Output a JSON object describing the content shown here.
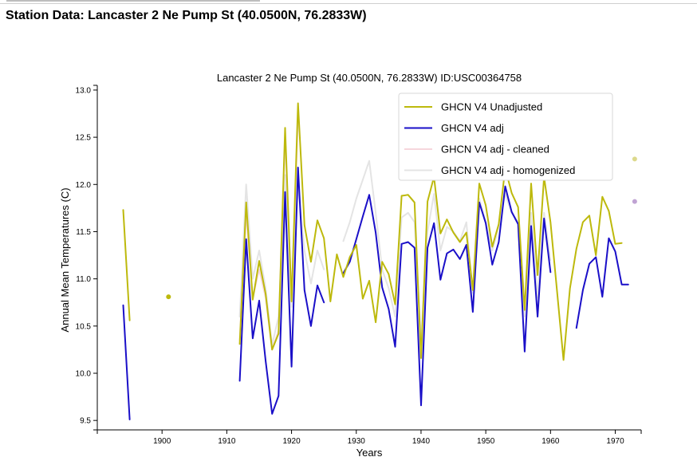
{
  "page": {
    "heading": "Station Data: Lancaster 2 Ne Pump St (40.0500N, 76.2833W)"
  },
  "chart_data": {
    "type": "line",
    "title": "Lancaster 2 Ne Pump St (40.0500N, 76.2833W) ID:USC00364758",
    "xlabel": "Years",
    "ylabel": "Annual Mean Temperatures (C)",
    "xlim": [
      1890,
      1974
    ],
    "ylim": [
      9.4,
      13.05
    ],
    "x_ticks": [
      1900,
      1910,
      1920,
      1930,
      1940,
      1950,
      1960,
      1970
    ],
    "y_ticks": [
      9.5,
      10.0,
      10.5,
      11.0,
      11.5,
      12.0,
      12.5,
      13.0
    ],
    "y_tick_labels": [
      "9.5",
      "10.0",
      "10.5",
      "11.0",
      "11.5",
      "12.0",
      "12.5",
      "13.0"
    ],
    "legend_position": "top-right",
    "series": [
      {
        "name": "GHCN V4 adj - homogenized",
        "color": "#e4e4e4",
        "points": [
          [
            1912,
            10.6
          ],
          [
            1913,
            12.0
          ],
          [
            1914,
            11.0
          ],
          [
            1915,
            11.3
          ],
          [
            1916,
            10.9
          ],
          [
            1917,
            10.3
          ],
          [
            1918,
            10.6
          ],
          [
            1919,
            12.1
          ],
          [
            1920,
            10.7
          ],
          [
            1921,
            12.0
          ],
          [
            1922,
            11.3
          ],
          [
            1923,
            10.95
          ],
          [
            1924,
            11.3
          ],
          [
            1925,
            11.1
          ],
          [
            null,
            null
          ],
          [
            1928,
            11.4
          ],
          [
            1929,
            11.6
          ],
          [
            1930,
            11.85
          ],
          [
            1931,
            12.05
          ],
          [
            1932,
            12.25
          ],
          [
            1933,
            11.7
          ],
          [
            1934,
            11.1
          ],
          [
            1935,
            10.9
          ],
          [
            1936,
            10.6
          ],
          [
            1937,
            11.65
          ],
          [
            1938,
            11.7
          ],
          [
            1939,
            11.6
          ],
          [
            1940,
            10.35
          ],
          [
            1941,
            11.5
          ],
          [
            1942,
            11.9
          ],
          [
            1943,
            11.3
          ],
          [
            1944,
            11.55
          ],
          [
            1945,
            11.5
          ],
          [
            1946,
            11.4
          ],
          [
            1947,
            11.6
          ],
          [
            1948,
            10.85
          ],
          [
            1949,
            11.85
          ],
          [
            1950,
            11.6
          ],
          [
            1951,
            11.3
          ],
          [
            1952,
            11.55
          ],
          [
            1953,
            11.9
          ],
          [
            1954,
            11.7
          ],
          [
            1955,
            11.6
          ],
          [
            1956,
            10.6
          ],
          [
            1957,
            11.7
          ],
          [
            1958,
            10.8
          ],
          [
            1959,
            11.7
          ],
          [
            1960,
            11.2
          ]
        ]
      },
      {
        "name": "GHCN V4 adj - cleaned",
        "color": "#f6d6dc",
        "points": [
          [
            1912,
            10.35
          ],
          [
            1913,
            11.7
          ],
          [
            1914,
            10.8
          ],
          [
            1915,
            11.1
          ],
          [
            1916,
            10.8
          ],
          [
            1917,
            10.25
          ],
          [
            1918,
            10.45
          ],
          [
            1919,
            12.5
          ],
          [
            1920,
            10.8
          ],
          [
            1921,
            12.7
          ]
        ]
      },
      {
        "name": "GHCN V4 adj",
        "color": "#1a0fc8",
        "points": [
          [
            1894,
            10.72
          ],
          [
            1895,
            9.51
          ],
          [
            null,
            null
          ],
          [
            1912,
            9.92
          ],
          [
            1913,
            11.42
          ],
          [
            1914,
            10.37
          ],
          [
            1915,
            10.77
          ],
          [
            1916,
            10.13
          ],
          [
            1917,
            9.57
          ],
          [
            1918,
            9.76
          ],
          [
            1919,
            11.92
          ],
          [
            1920,
            10.07
          ],
          [
            1921,
            12.18
          ],
          [
            1922,
            10.88
          ],
          [
            1923,
            10.5
          ],
          [
            1924,
            10.93
          ],
          [
            1925,
            10.75
          ],
          [
            null,
            null
          ],
          [
            1928,
            11.06
          ],
          [
            1929,
            11.18
          ],
          [
            1930,
            11.42
          ],
          [
            1931,
            11.66
          ],
          [
            1932,
            11.89
          ],
          [
            1933,
            11.49
          ],
          [
            1934,
            10.91
          ],
          [
            1935,
            10.68
          ],
          [
            1936,
            10.28
          ],
          [
            1937,
            11.37
          ],
          [
            1938,
            11.39
          ],
          [
            1939,
            11.33
          ],
          [
            1940,
            9.66
          ],
          [
            1941,
            11.33
          ],
          [
            1942,
            11.59
          ],
          [
            1943,
            10.99
          ],
          [
            1944,
            11.27
          ],
          [
            1945,
            11.31
          ],
          [
            1946,
            11.21
          ],
          [
            1947,
            11.36
          ],
          [
            1948,
            10.65
          ],
          [
            1949,
            11.81
          ],
          [
            1950,
            11.59
          ],
          [
            1951,
            11.15
          ],
          [
            1952,
            11.39
          ],
          [
            1953,
            11.98
          ],
          [
            1954,
            11.71
          ],
          [
            1955,
            11.58
          ],
          [
            1956,
            10.23
          ],
          [
            1957,
            11.56
          ],
          [
            1958,
            10.6
          ],
          [
            1959,
            11.64
          ],
          [
            1960,
            11.07
          ],
          [
            null,
            null
          ],
          [
            1964,
            10.48
          ],
          [
            1965,
            10.88
          ],
          [
            1966,
            11.16
          ],
          [
            1967,
            11.23
          ],
          [
            1968,
            10.81
          ],
          [
            1969,
            11.43
          ],
          [
            1970,
            11.29
          ],
          [
            1971,
            10.94
          ],
          [
            1972,
            10.94
          ]
        ]
      },
      {
        "name": "GHCN V4 Unadjusted",
        "color": "#bdb90c",
        "points": [
          [
            1894,
            11.73
          ],
          [
            1895,
            10.56
          ],
          [
            null,
            null
          ],
          [
            1912,
            10.31
          ],
          [
            1913,
            11.81
          ],
          [
            1914,
            10.78
          ],
          [
            1915,
            11.19
          ],
          [
            1916,
            10.84
          ],
          [
            1917,
            10.25
          ],
          [
            1918,
            10.42
          ],
          [
            1919,
            12.6
          ],
          [
            1920,
            10.76
          ],
          [
            1921,
            12.86
          ],
          [
            1922,
            11.57
          ],
          [
            1923,
            11.18
          ],
          [
            1924,
            11.62
          ],
          [
            1925,
            11.43
          ],
          [
            1926,
            10.76
          ],
          [
            1927,
            11.26
          ],
          [
            1928,
            11.02
          ],
          [
            1929,
            11.23
          ],
          [
            1930,
            11.36
          ],
          [
            1931,
            10.79
          ],
          [
            1932,
            10.98
          ],
          [
            1933,
            10.54
          ],
          [
            1934,
            11.18
          ],
          [
            1935,
            11.05
          ],
          [
            1936,
            10.73
          ],
          [
            1937,
            11.88
          ],
          [
            1938,
            11.89
          ],
          [
            1939,
            11.81
          ],
          [
            1940,
            10.16
          ],
          [
            1941,
            11.82
          ],
          [
            1942,
            12.08
          ],
          [
            1943,
            11.48
          ],
          [
            1944,
            11.63
          ],
          [
            1945,
            11.49
          ],
          [
            1946,
            11.39
          ],
          [
            1947,
            11.49
          ],
          [
            1948,
            10.88
          ],
          [
            1949,
            12.01
          ],
          [
            1950,
            11.78
          ],
          [
            1951,
            11.34
          ],
          [
            1952,
            11.58
          ],
          [
            1953,
            12.17
          ],
          [
            1954,
            11.91
          ],
          [
            1955,
            11.76
          ],
          [
            1956,
            10.67
          ],
          [
            1957,
            12.01
          ],
          [
            1958,
            11.04
          ],
          [
            1959,
            12.08
          ],
          [
            1960,
            11.6
          ],
          [
            1961,
            10.87
          ],
          [
            1962,
            10.14
          ],
          [
            1963,
            10.9
          ],
          [
            1964,
            11.32
          ],
          [
            1965,
            11.6
          ],
          [
            1966,
            11.67
          ],
          [
            1967,
            11.25
          ],
          [
            1968,
            11.87
          ],
          [
            1969,
            11.72
          ],
          [
            1970,
            11.37
          ],
          [
            1971,
            11.38
          ]
        ]
      }
    ],
    "markers": [
      {
        "series": "GHCN V4 Unadjusted",
        "x": 1901,
        "y": 10.81,
        "color": "#bdb90c"
      },
      {
        "series": "GHCN V4 Unadjusted",
        "x": 1973,
        "y": 12.27,
        "color": "#dcd98c"
      },
      {
        "series": "GHCN V4 adj",
        "x": 1973,
        "y": 11.82,
        "color": "#c0a3d3"
      }
    ],
    "legend": [
      {
        "label": "GHCN V4 Unadjusted",
        "color": "#bdb90c"
      },
      {
        "label": "GHCN V4 adj",
        "color": "#1a0fc8"
      },
      {
        "label": "GHCN V4 adj - cleaned",
        "color": "#f6d6dc"
      },
      {
        "label": "GHCN V4 adj - homogenized",
        "color": "#e4e4e4"
      }
    ]
  }
}
